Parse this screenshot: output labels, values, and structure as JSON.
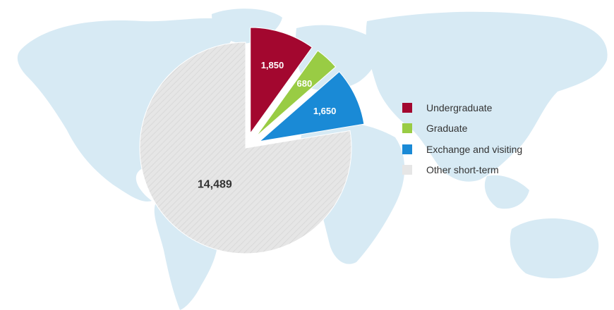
{
  "chart_data": {
    "type": "pie",
    "title": "",
    "slices": [
      {
        "name": "Undergraduate",
        "value": 1850,
        "label": "1,850",
        "color": "#a3072f",
        "exploded": true
      },
      {
        "name": "Graduate",
        "value": 680,
        "label": "680",
        "color": "#99cc44",
        "exploded": true
      },
      {
        "name": "Exchange and visiting",
        "value": 1650,
        "label": "1,650",
        "color": "#1a8ad6",
        "exploded": true
      },
      {
        "name": "Other short-term",
        "value": 14489,
        "label": "14,489",
        "color": "#e6e6e6",
        "exploded": false
      }
    ],
    "legend_position": "right",
    "background": "world-map"
  }
}
